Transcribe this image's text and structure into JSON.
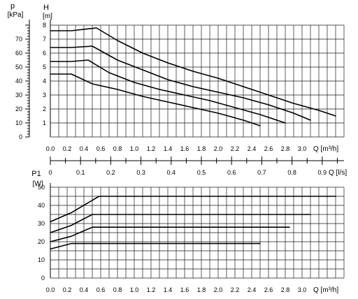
{
  "chart_data": [
    {
      "type": "line",
      "title": "",
      "ylabel_top": "H",
      "ylabel_top_unit": "[m]",
      "ylabel_secondary": "p",
      "ylabel_secondary_unit": "[kPa]",
      "xlabel": "Q [m³/h]",
      "xlabel2": "Q [l/s]",
      "xlim": [
        0,
        3.5
      ],
      "ylim": [
        0,
        8
      ],
      "ylim_secondary": [
        0,
        80
      ],
      "grid": true,
      "x_ticks": [
        "0.0",
        "0.2",
        "0.4",
        "0.6",
        "0.8",
        "1.0",
        "1.2",
        "1.4",
        "1.6",
        "1.8",
        "2.0",
        "2.2",
        "2.4",
        "2.6",
        "2.8",
        "3.0"
      ],
      "y_ticks": [
        "1",
        "2",
        "3",
        "4",
        "5",
        "6",
        "7",
        "8"
      ],
      "y_ticks_secondary": [
        "0",
        "10",
        "20",
        "30",
        "40",
        "50",
        "60",
        "70"
      ],
      "x2_ticks": [
        "0",
        "0.1",
        "0.2",
        "0.3",
        "0.4",
        "0.5",
        "0.6",
        "0.7",
        "0.8",
        "0.9"
      ],
      "series": [
        {
          "x": [
            0,
            0.25,
            0.55,
            0.8,
            1.1,
            1.4,
            1.7,
            2.0,
            2.3,
            2.6,
            2.9,
            3.2,
            3.4
          ],
          "y": [
            7.6,
            7.6,
            7.8,
            6.9,
            6.0,
            5.3,
            4.7,
            4.2,
            3.6,
            3.0,
            2.4,
            1.9,
            1.5
          ]
        },
        {
          "x": [
            0,
            0.25,
            0.5,
            0.8,
            1.1,
            1.4,
            1.7,
            2.0,
            2.3,
            2.6,
            2.9,
            3.1
          ],
          "y": [
            6.4,
            6.4,
            6.5,
            5.5,
            4.8,
            4.1,
            3.6,
            3.2,
            2.8,
            2.3,
            1.7,
            1.2
          ]
        },
        {
          "x": [
            0,
            0.25,
            0.45,
            0.7,
            1.0,
            1.3,
            1.6,
            1.9,
            2.2,
            2.5,
            2.8
          ],
          "y": [
            5.4,
            5.4,
            5.5,
            4.6,
            3.9,
            3.4,
            3.0,
            2.6,
            2.1,
            1.6,
            1.0
          ]
        },
        {
          "x": [
            0,
            0.25,
            0.5,
            0.8,
            1.1,
            1.4,
            1.7,
            2.0,
            2.3,
            2.5
          ],
          "y": [
            4.5,
            4.5,
            3.8,
            3.4,
            2.9,
            2.5,
            2.1,
            1.7,
            1.2,
            0.8
          ]
        }
      ]
    },
    {
      "type": "line",
      "title": "",
      "ylabel": "P1",
      "ylabel_unit": "[W]",
      "xlabel": "Q [m³/h]",
      "xlim": [
        0,
        3.5
      ],
      "ylim": [
        0,
        50
      ],
      "grid": true,
      "x_ticks": [
        "0.0",
        "0.2",
        "0.4",
        "0.6",
        "0.8",
        "1.0",
        "1.2",
        "1.4",
        "1.6",
        "1.8",
        "2.0",
        "2.2",
        "2.4",
        "2.6",
        "2.8",
        "3.0"
      ],
      "y_ticks": [
        "0",
        "10",
        "20",
        "30",
        "40",
        "50"
      ],
      "series": [
        {
          "x": [
            0,
            0.25,
            0.58,
            1.5,
            2.5,
            3.4
          ],
          "y": [
            31,
            36,
            45,
            45,
            45,
            45
          ]
        },
        {
          "x": [
            0,
            0.25,
            0.5,
            1.5,
            2.5,
            3.1
          ],
          "y": [
            25,
            29,
            35,
            35,
            35,
            35
          ]
        },
        {
          "x": [
            0,
            0.25,
            0.5,
            1.5,
            2.5,
            2.85
          ],
          "y": [
            20,
            23,
            28,
            28,
            28,
            28
          ]
        },
        {
          "x": [
            0,
            0.25,
            1.0,
            2.0,
            2.5
          ],
          "y": [
            16,
            19,
            19,
            19,
            19
          ]
        }
      ]
    }
  ]
}
